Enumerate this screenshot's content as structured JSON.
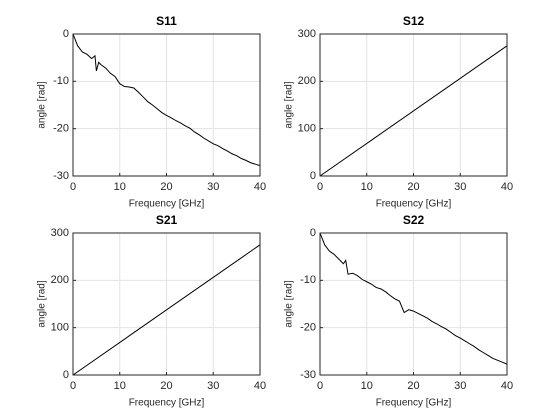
{
  "chart_data": [
    {
      "type": "line",
      "title": "S11",
      "xlabel": "Frequency [GHz]",
      "ylabel": "angle [rad]",
      "x": [
        0,
        1,
        2,
        3,
        4,
        4.7,
        5,
        5.5,
        6,
        7,
        8,
        9,
        10,
        11,
        12,
        13,
        14,
        15,
        16,
        17,
        18,
        19,
        20,
        21,
        22,
        23,
        24,
        25,
        26,
        27,
        28,
        29,
        30,
        31,
        32,
        33,
        34,
        35,
        36,
        37,
        38,
        39,
        40
      ],
      "values": [
        0,
        -2.5,
        -3.8,
        -4.3,
        -5.2,
        -4.6,
        -7.8,
        -6.0,
        -6.5,
        -7.2,
        -8.3,
        -9.0,
        -10.5,
        -11.1,
        -11.2,
        -11.4,
        -12.3,
        -13.3,
        -14.3,
        -15.0,
        -15.8,
        -16.6,
        -17.2,
        -17.7,
        -18.3,
        -18.8,
        -19.4,
        -19.9,
        -20.7,
        -21.3,
        -22.0,
        -22.6,
        -23.2,
        -23.6,
        -24.2,
        -24.7,
        -25.3,
        -25.7,
        -26.3,
        -26.7,
        -27.2,
        -27.5,
        -27.8
      ],
      "color": "#000000",
      "xlim": [
        0,
        40
      ],
      "ylim": [
        -30,
        0
      ],
      "xticks": [
        0,
        10,
        20,
        30,
        40
      ],
      "yticks": [
        -30,
        -20,
        -10,
        0
      ],
      "grid": true
    },
    {
      "type": "line",
      "title": "S12",
      "xlabel": "Frequency [GHz]",
      "ylabel": "angle [rad]",
      "x": [
        0,
        40
      ],
      "values": [
        0,
        275
      ],
      "color": "#000000",
      "xlim": [
        0,
        40
      ],
      "ylim": [
        0,
        300
      ],
      "xticks": [
        0,
        10,
        20,
        30,
        40
      ],
      "yticks": [
        0,
        100,
        200,
        300
      ],
      "grid": true
    },
    {
      "type": "line",
      "title": "S21",
      "xlabel": "Frequency [GHz]",
      "ylabel": "angle [rad]",
      "x": [
        0,
        40
      ],
      "values": [
        0,
        275
      ],
      "color": "#000000",
      "xlim": [
        0,
        40
      ],
      "ylim": [
        0,
        300
      ],
      "xticks": [
        0,
        10,
        20,
        30,
        40
      ],
      "yticks": [
        0,
        100,
        200,
        300
      ],
      "grid": true
    },
    {
      "type": "line",
      "title": "S22",
      "xlabel": "Frequency [GHz]",
      "ylabel": "angle [rad]",
      "x": [
        0,
        1,
        2,
        3,
        4,
        5,
        5.5,
        6,
        7,
        8,
        9,
        10,
        11,
        12,
        13,
        14,
        15,
        16,
        17,
        18,
        19,
        20,
        21,
        22,
        23,
        24,
        25,
        26,
        27,
        28,
        29,
        30,
        31,
        32,
        33,
        34,
        35,
        36,
        37,
        38,
        39,
        40
      ],
      "values": [
        0,
        -2.5,
        -3.8,
        -4.5,
        -5.5,
        -6.5,
        -5.8,
        -8.7,
        -8.5,
        -9.0,
        -9.8,
        -10.3,
        -10.8,
        -11.5,
        -11.8,
        -12.4,
        -13.2,
        -13.9,
        -14.4,
        -16.8,
        -16.2,
        -16.5,
        -17.0,
        -17.5,
        -18.0,
        -18.7,
        -19.2,
        -19.8,
        -20.3,
        -21.0,
        -21.7,
        -22.2,
        -22.8,
        -23.4,
        -24.0,
        -24.7,
        -25.3,
        -25.9,
        -26.5,
        -26.9,
        -27.3,
        -27.7
      ],
      "color": "#000000",
      "xlim": [
        0,
        40
      ],
      "ylim": [
        -30,
        0
      ],
      "xticks": [
        0,
        10,
        20,
        30,
        40
      ],
      "yticks": [
        -30,
        -20,
        -10,
        0
      ],
      "grid": true
    }
  ]
}
